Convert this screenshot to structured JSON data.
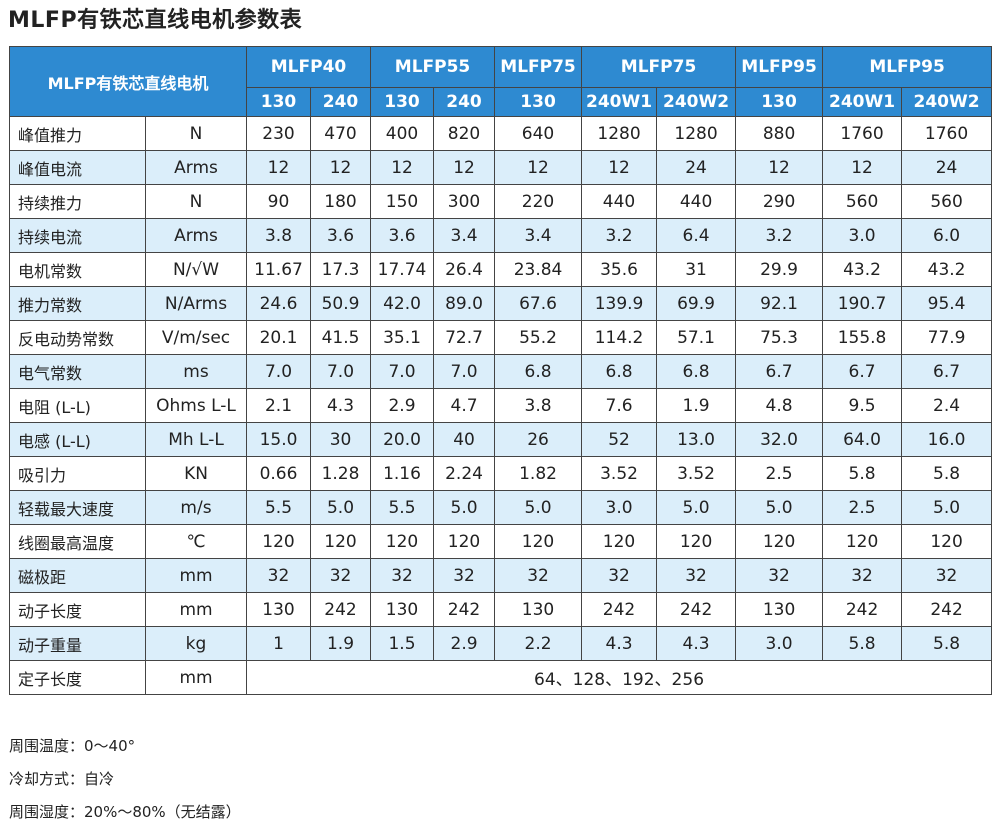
{
  "title": "MLFP有铁芯直线电机参数表",
  "table": {
    "corner_label": "MLFP有铁芯直线电机",
    "model_groups": [
      {
        "label": "MLFP40",
        "span": 2
      },
      {
        "label": "MLFP55",
        "span": 2
      },
      {
        "label": "MLFP75",
        "span": 1
      },
      {
        "label": "MLFP75",
        "span": 2
      },
      {
        "label": "MLFP95",
        "span": 1
      },
      {
        "label": "MLFP95",
        "span": 2
      }
    ],
    "variants": [
      "130",
      "240",
      "130",
      "240",
      "130",
      "240W1",
      "240W2",
      "130",
      "240W1",
      "240W2"
    ],
    "rows": [
      {
        "param": "峰值推力",
        "unit": "N",
        "values": [
          "230",
          "470",
          "400",
          "820",
          "640",
          "1280",
          "1280",
          "880",
          "1760",
          "1760"
        ]
      },
      {
        "param": "峰值电流",
        "unit": "Arms",
        "values": [
          "12",
          "12",
          "12",
          "12",
          "12",
          "12",
          "24",
          "12",
          "12",
          "24"
        ]
      },
      {
        "param": "持续推力",
        "unit": "N",
        "values": [
          "90",
          "180",
          "150",
          "300",
          "220",
          "440",
          "440",
          "290",
          "560",
          "560"
        ]
      },
      {
        "param": "持续电流",
        "unit": "Arms",
        "values": [
          "3.8",
          "3.6",
          "3.6",
          "3.4",
          "3.4",
          "3.2",
          "6.4",
          "3.2",
          "3.0",
          "6.0"
        ]
      },
      {
        "param": "电机常数",
        "unit": "N/√W",
        "values": [
          "11.67",
          "17.3",
          "17.74",
          "26.4",
          "23.84",
          "35.6",
          "31",
          "29.9",
          "43.2",
          "43.2"
        ]
      },
      {
        "param": "推力常数",
        "unit": "N/Arms",
        "values": [
          "24.6",
          "50.9",
          "42.0",
          "89.0",
          "67.6",
          "139.9",
          "69.9",
          "92.1",
          "190.7",
          "95.4"
        ]
      },
      {
        "param": "反电动势常数",
        "unit": "V/m/sec",
        "values": [
          "20.1",
          "41.5",
          "35.1",
          "72.7",
          "55.2",
          "114.2",
          "57.1",
          "75.3",
          "155.8",
          "77.9"
        ]
      },
      {
        "param": "电气常数",
        "unit": "ms",
        "values": [
          "7.0",
          "7.0",
          "7.0",
          "7.0",
          "6.8",
          "6.8",
          "6.8",
          "6.7",
          "6.7",
          "6.7"
        ]
      },
      {
        "param": "电阻 (L-L)",
        "unit": "Ohms L-L",
        "values": [
          "2.1",
          "4.3",
          "2.9",
          "4.7",
          "3.8",
          "7.6",
          "1.9",
          "4.8",
          "9.5",
          "2.4"
        ]
      },
      {
        "param": "电感 (L-L)",
        "unit": "Mh L-L",
        "values": [
          "15.0",
          "30",
          "20.0",
          "40",
          "26",
          "52",
          "13.0",
          "32.0",
          "64.0",
          "16.0"
        ]
      },
      {
        "param": "吸引力",
        "unit": "KN",
        "values": [
          "0.66",
          "1.28",
          "1.16",
          "2.24",
          "1.82",
          "3.52",
          "3.52",
          "2.5",
          "5.8",
          "5.8"
        ]
      },
      {
        "param": "轻载最大速度",
        "unit": "m/s",
        "values": [
          "5.5",
          "5.0",
          "5.5",
          "5.0",
          "5.0",
          "3.0",
          "5.0",
          "5.0",
          "2.5",
          "5.0"
        ]
      },
      {
        "param": "线圈最高温度",
        "unit": "℃",
        "values": [
          "120",
          "120",
          "120",
          "120",
          "120",
          "120",
          "120",
          "120",
          "120",
          "120"
        ]
      },
      {
        "param": "磁极距",
        "unit": "mm",
        "values": [
          "32",
          "32",
          "32",
          "32",
          "32",
          "32",
          "32",
          "32",
          "32",
          "32"
        ]
      },
      {
        "param": "动子长度",
        "unit": "mm",
        "values": [
          "130",
          "242",
          "130",
          "242",
          "130",
          "242",
          "242",
          "130",
          "242",
          "242"
        ]
      },
      {
        "param": "动子重量",
        "unit": "kg",
        "values": [
          "1",
          "1.9",
          "1.5",
          "2.9",
          "2.2",
          "4.3",
          "4.3",
          "3.0",
          "5.8",
          "5.8"
        ]
      }
    ],
    "stator_row": {
      "param": "定子长度",
      "unit": "mm",
      "value": "64、128、192、256"
    }
  },
  "notes": [
    "周围温度：0～40°",
    "冷却方式：自冷",
    "周围湿度：20%～80%（无结露）"
  ],
  "colors": {
    "header_blue": "#2e8ad1",
    "row_alt": "#dbeefa"
  }
}
